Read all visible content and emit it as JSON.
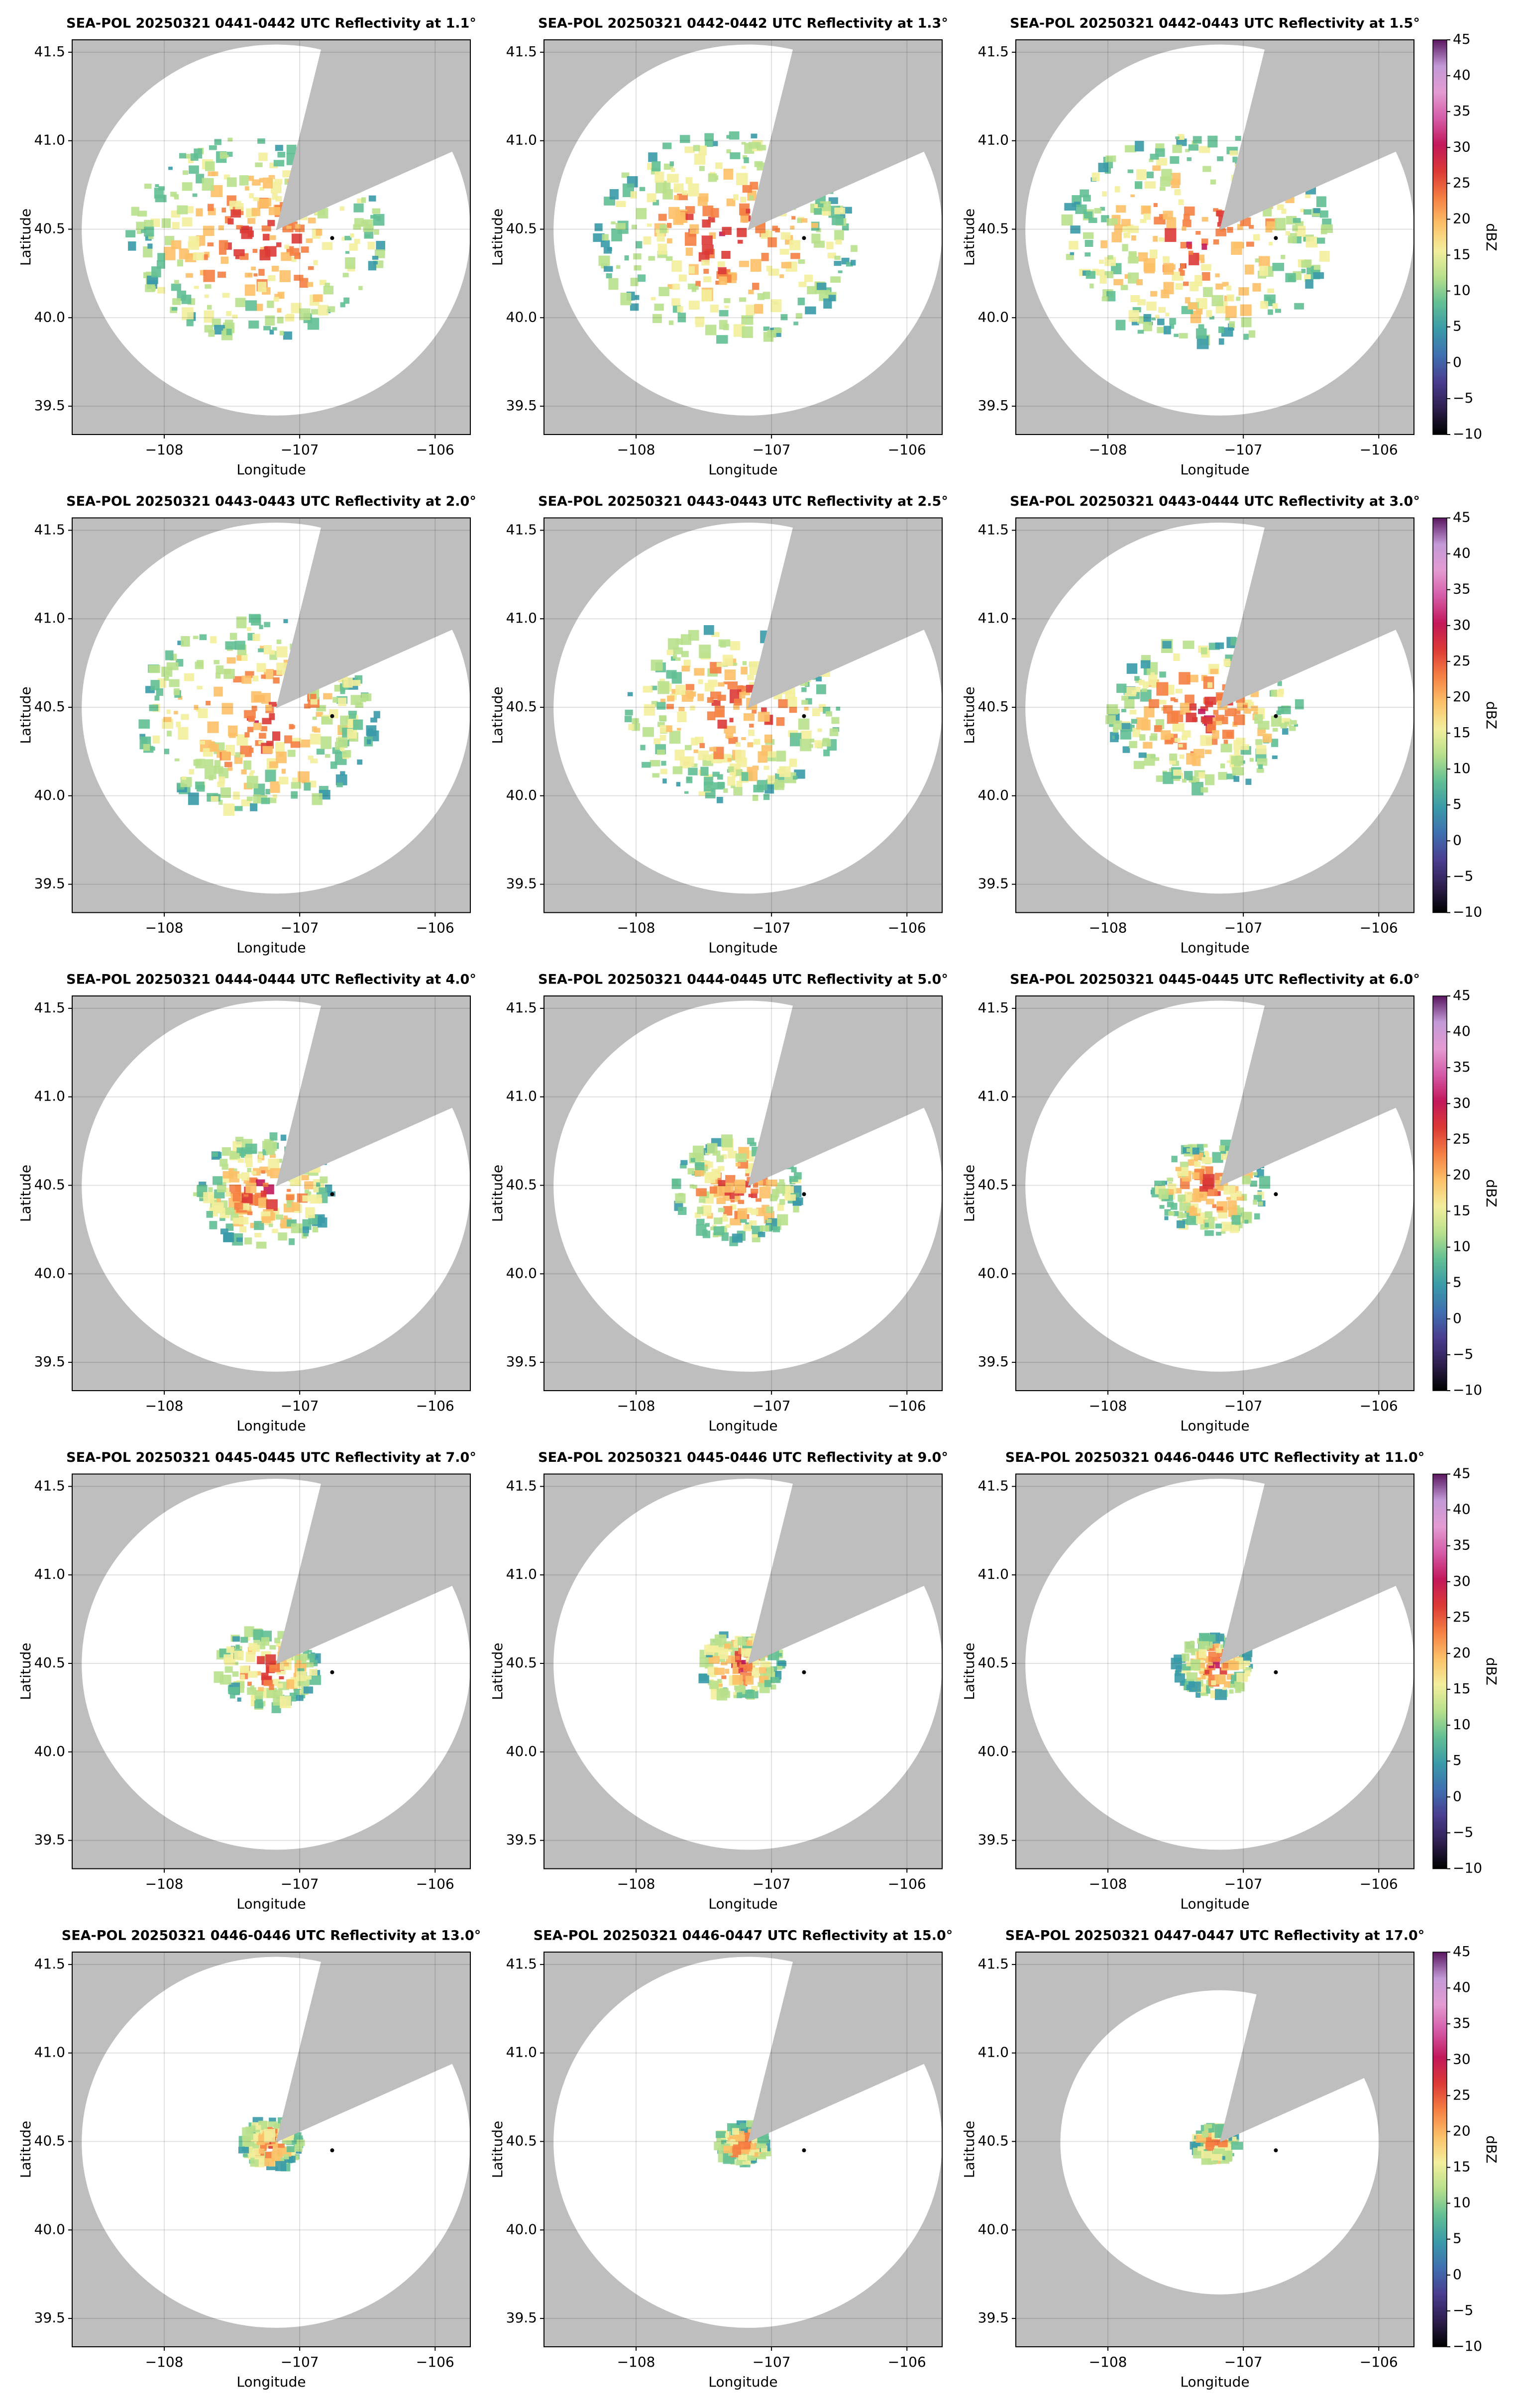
{
  "chart_data": [
    {
      "type": "ppi",
      "title": "SEA-POL 20250321 0441-0442 UTC Reflectivity at 1.1°",
      "xlabel": "Longitude",
      "ylabel": "Latitude",
      "xlim": [
        -108.68,
        -105.74
      ],
      "ylim": [
        39.34,
        41.57
      ],
      "xticks": [
        {
          "value": -108,
          "label": "−108"
        },
        {
          "value": -107,
          "label": "−107"
        },
        {
          "value": -106,
          "label": "−106"
        }
      ],
      "yticks": [
        39.5,
        {
          "value": 40,
          "label": "40.0"
        },
        40.5,
        {
          "value": 41,
          "label": "41.0"
        },
        41.5
      ],
      "grid": true,
      "site": {
        "x": -106.76,
        "y": 40.45
      }
    },
    {
      "type": "ppi",
      "title": "SEA-POL 20250321 0442-0442 UTC Reflectivity at 1.3°",
      "xlabel": "Longitude",
      "ylabel": "Latitude",
      "xlim": [
        -108.68,
        -105.74
      ],
      "ylim": [
        39.34,
        41.57
      ],
      "xticks": [
        {
          "value": -108,
          "label": "−108"
        },
        {
          "value": -107,
          "label": "−107"
        },
        {
          "value": -106,
          "label": "−106"
        }
      ],
      "yticks": [
        39.5,
        {
          "value": 40,
          "label": "40.0"
        },
        40.5,
        {
          "value": 41,
          "label": "41.0"
        },
        41.5
      ],
      "grid": true,
      "site": {
        "x": -106.76,
        "y": 40.45
      }
    },
    {
      "type": "ppi",
      "title": "SEA-POL 20250321 0442-0443 UTC Reflectivity at 1.5°",
      "xlabel": "Longitude",
      "ylabel": "Latitude",
      "xlim": [
        -108.68,
        -105.74
      ],
      "ylim": [
        39.34,
        41.57
      ],
      "xticks": [
        {
          "value": -108,
          "label": "−108"
        },
        {
          "value": -107,
          "label": "−107"
        },
        {
          "value": -106,
          "label": "−106"
        }
      ],
      "yticks": [
        39.5,
        {
          "value": 40,
          "label": "40.0"
        },
        40.5,
        {
          "value": 41,
          "label": "41.0"
        },
        41.5
      ],
      "grid": true,
      "site": {
        "x": -106.76,
        "y": 40.45
      },
      "colorbar": {
        "label": "dBZ",
        "lim": [
          -10,
          45
        ],
        "ticks": [
          {
            "value": -10,
            "label": "−10"
          },
          {
            "value": -5,
            "label": "−5"
          },
          0,
          5,
          10,
          15,
          20,
          25,
          30,
          35,
          40,
          45
        ]
      }
    },
    {
      "type": "ppi",
      "title": "SEA-POL 20250321 0443-0443 UTC Reflectivity at 2.0°",
      "xlabel": "Longitude",
      "ylabel": "Latitude",
      "xlim": [
        -108.68,
        -105.74
      ],
      "ylim": [
        39.34,
        41.57
      ],
      "xticks": [
        {
          "value": -108,
          "label": "−108"
        },
        {
          "value": -107,
          "label": "−107"
        },
        {
          "value": -106,
          "label": "−106"
        }
      ],
      "yticks": [
        39.5,
        {
          "value": 40,
          "label": "40.0"
        },
        40.5,
        {
          "value": 41,
          "label": "41.0"
        },
        41.5
      ],
      "grid": true,
      "site": {
        "x": -106.76,
        "y": 40.45
      }
    },
    {
      "type": "ppi",
      "title": "SEA-POL 20250321 0443-0443 UTC Reflectivity at 2.5°",
      "xlabel": "Longitude",
      "ylabel": "Latitude",
      "xlim": [
        -108.68,
        -105.74
      ],
      "ylim": [
        39.34,
        41.57
      ],
      "xticks": [
        {
          "value": -108,
          "label": "−108"
        },
        {
          "value": -107,
          "label": "−107"
        },
        {
          "value": -106,
          "label": "−106"
        }
      ],
      "yticks": [
        39.5,
        {
          "value": 40,
          "label": "40.0"
        },
        40.5,
        {
          "value": 41,
          "label": "41.0"
        },
        41.5
      ],
      "grid": true,
      "site": {
        "x": -106.76,
        "y": 40.45
      }
    },
    {
      "type": "ppi",
      "title": "SEA-POL 20250321 0443-0444 UTC Reflectivity at 3.0°",
      "xlabel": "Longitude",
      "ylabel": "Latitude",
      "xlim": [
        -108.68,
        -105.74
      ],
      "ylim": [
        39.34,
        41.57
      ],
      "xticks": [
        {
          "value": -108,
          "label": "−108"
        },
        {
          "value": -107,
          "label": "−107"
        },
        {
          "value": -106,
          "label": "−106"
        }
      ],
      "yticks": [
        39.5,
        {
          "value": 40,
          "label": "40.0"
        },
        40.5,
        {
          "value": 41,
          "label": "41.0"
        },
        41.5
      ],
      "grid": true,
      "site": {
        "x": -106.76,
        "y": 40.45
      },
      "colorbar": {
        "label": "dBZ",
        "lim": [
          -10,
          45
        ],
        "ticks": [
          {
            "value": -10,
            "label": "−10"
          },
          {
            "value": -5,
            "label": "−5"
          },
          0,
          5,
          10,
          15,
          20,
          25,
          30,
          35,
          40,
          45
        ]
      }
    },
    {
      "type": "ppi",
      "title": "SEA-POL 20250321 0444-0444 UTC Reflectivity at 4.0°",
      "xlabel": "Longitude",
      "ylabel": "Latitude",
      "xlim": [
        -108.68,
        -105.74
      ],
      "ylim": [
        39.34,
        41.57
      ],
      "xticks": [
        {
          "value": -108,
          "label": "−108"
        },
        {
          "value": -107,
          "label": "−107"
        },
        {
          "value": -106,
          "label": "−106"
        }
      ],
      "yticks": [
        39.5,
        {
          "value": 40,
          "label": "40.0"
        },
        40.5,
        {
          "value": 41,
          "label": "41.0"
        },
        41.5
      ],
      "grid": true,
      "site": {
        "x": -106.76,
        "y": 40.45
      }
    },
    {
      "type": "ppi",
      "title": "SEA-POL 20250321 0444-0445 UTC Reflectivity at 5.0°",
      "xlabel": "Longitude",
      "ylabel": "Latitude",
      "xlim": [
        -108.68,
        -105.74
      ],
      "ylim": [
        39.34,
        41.57
      ],
      "xticks": [
        {
          "value": -108,
          "label": "−108"
        },
        {
          "value": -107,
          "label": "−107"
        },
        {
          "value": -106,
          "label": "−106"
        }
      ],
      "yticks": [
        39.5,
        {
          "value": 40,
          "label": "40.0"
        },
        40.5,
        {
          "value": 41,
          "label": "41.0"
        },
        41.5
      ],
      "grid": true,
      "site": {
        "x": -106.76,
        "y": 40.45
      }
    },
    {
      "type": "ppi",
      "title": "SEA-POL 20250321 0445-0445 UTC Reflectivity at 6.0°",
      "xlabel": "Longitude",
      "ylabel": "Latitude",
      "xlim": [
        -108.68,
        -105.74
      ],
      "ylim": [
        39.34,
        41.57
      ],
      "xticks": [
        {
          "value": -108,
          "label": "−108"
        },
        {
          "value": -107,
          "label": "−107"
        },
        {
          "value": -106,
          "label": "−106"
        }
      ],
      "yticks": [
        39.5,
        {
          "value": 40,
          "label": "40.0"
        },
        40.5,
        {
          "value": 41,
          "label": "41.0"
        },
        41.5
      ],
      "grid": true,
      "site": {
        "x": -106.76,
        "y": 40.45
      },
      "colorbar": {
        "label": "dBZ",
        "lim": [
          -10,
          45
        ],
        "ticks": [
          {
            "value": -10,
            "label": "−10"
          },
          {
            "value": -5,
            "label": "−5"
          },
          0,
          5,
          10,
          15,
          20,
          25,
          30,
          35,
          40,
          45
        ]
      }
    },
    {
      "type": "ppi",
      "title": "SEA-POL 20250321 0445-0445 UTC Reflectivity at 7.0°",
      "xlabel": "Longitude",
      "ylabel": "Latitude",
      "xlim": [
        -108.68,
        -105.74
      ],
      "ylim": [
        39.34,
        41.57
      ],
      "xticks": [
        {
          "value": -108,
          "label": "−108"
        },
        {
          "value": -107,
          "label": "−107"
        },
        {
          "value": -106,
          "label": "−106"
        }
      ],
      "yticks": [
        39.5,
        {
          "value": 40,
          "label": "40.0"
        },
        40.5,
        {
          "value": 41,
          "label": "41.0"
        },
        41.5
      ],
      "grid": true,
      "site": {
        "x": -106.76,
        "y": 40.45
      }
    },
    {
      "type": "ppi",
      "title": "SEA-POL 20250321 0445-0446 UTC Reflectivity at 9.0°",
      "xlabel": "Longitude",
      "ylabel": "Latitude",
      "xlim": [
        -108.68,
        -105.74
      ],
      "ylim": [
        39.34,
        41.57
      ],
      "xticks": [
        {
          "value": -108,
          "label": "−108"
        },
        {
          "value": -107,
          "label": "−107"
        },
        {
          "value": -106,
          "label": "−106"
        }
      ],
      "yticks": [
        39.5,
        {
          "value": 40,
          "label": "40.0"
        },
        40.5,
        {
          "value": 41,
          "label": "41.0"
        },
        41.5
      ],
      "grid": true,
      "site": {
        "x": -106.76,
        "y": 40.45
      }
    },
    {
      "type": "ppi",
      "title": "SEA-POL 20250321 0446-0446 UTC Reflectivity at 11.0°",
      "xlabel": "Longitude",
      "ylabel": "Latitude",
      "xlim": [
        -108.68,
        -105.74
      ],
      "ylim": [
        39.34,
        41.57
      ],
      "xticks": [
        {
          "value": -108,
          "label": "−108"
        },
        {
          "value": -107,
          "label": "−107"
        },
        {
          "value": -106,
          "label": "−106"
        }
      ],
      "yticks": [
        39.5,
        {
          "value": 40,
          "label": "40.0"
        },
        40.5,
        {
          "value": 41,
          "label": "41.0"
        },
        41.5
      ],
      "grid": true,
      "site": {
        "x": -106.76,
        "y": 40.45
      },
      "colorbar": {
        "label": "dBZ",
        "lim": [
          -10,
          45
        ],
        "ticks": [
          {
            "value": -10,
            "label": "−10"
          },
          {
            "value": -5,
            "label": "−5"
          },
          0,
          5,
          10,
          15,
          20,
          25,
          30,
          35,
          40,
          45
        ]
      }
    },
    {
      "type": "ppi",
      "title": "SEA-POL 20250321 0446-0446 UTC Reflectivity at 13.0°",
      "xlabel": "Longitude",
      "ylabel": "Latitude",
      "xlim": [
        -108.68,
        -105.74
      ],
      "ylim": [
        39.34,
        41.57
      ],
      "xticks": [
        {
          "value": -108,
          "label": "−108"
        },
        {
          "value": -107,
          "label": "−107"
        },
        {
          "value": -106,
          "label": "−106"
        }
      ],
      "yticks": [
        39.5,
        {
          "value": 40,
          "label": "40.0"
        },
        40.5,
        {
          "value": 41,
          "label": "41.0"
        },
        41.5
      ],
      "grid": true,
      "site": {
        "x": -106.76,
        "y": 40.45
      }
    },
    {
      "type": "ppi",
      "title": "SEA-POL 20250321 0446-0447 UTC Reflectivity at 15.0°",
      "xlabel": "Longitude",
      "ylabel": "Latitude",
      "xlim": [
        -108.68,
        -105.74
      ],
      "ylim": [
        39.34,
        41.57
      ],
      "xticks": [
        {
          "value": -108,
          "label": "−108"
        },
        {
          "value": -107,
          "label": "−107"
        },
        {
          "value": -106,
          "label": "−106"
        }
      ],
      "yticks": [
        39.5,
        {
          "value": 40,
          "label": "40.0"
        },
        40.5,
        {
          "value": 41,
          "label": "41.0"
        },
        41.5
      ],
      "grid": true,
      "site": {
        "x": -106.76,
        "y": 40.45
      }
    },
    {
      "type": "ppi",
      "title": "SEA-POL 20250321 0447-0447 UTC Reflectivity at 17.0°",
      "xlabel": "Longitude",
      "ylabel": "Latitude",
      "xlim": [
        -108.68,
        -105.74
      ],
      "ylim": [
        39.34,
        41.57
      ],
      "xticks": [
        {
          "value": -108,
          "label": "−108"
        },
        {
          "value": -107,
          "label": "−107"
        },
        {
          "value": -106,
          "label": "−106"
        }
      ],
      "yticks": [
        39.5,
        {
          "value": 40,
          "label": "40.0"
        },
        40.5,
        {
          "value": 41,
          "label": "41.0"
        },
        41.5
      ],
      "grid": true,
      "site": {
        "x": -106.76,
        "y": 40.45
      },
      "colorbar": {
        "label": "dBZ",
        "lim": [
          -10,
          45
        ],
        "ticks": [
          {
            "value": -10,
            "label": "−10"
          },
          {
            "value": -5,
            "label": "−5"
          },
          0,
          5,
          10,
          15,
          20,
          25,
          30,
          35,
          40,
          45
        ]
      }
    }
  ]
}
